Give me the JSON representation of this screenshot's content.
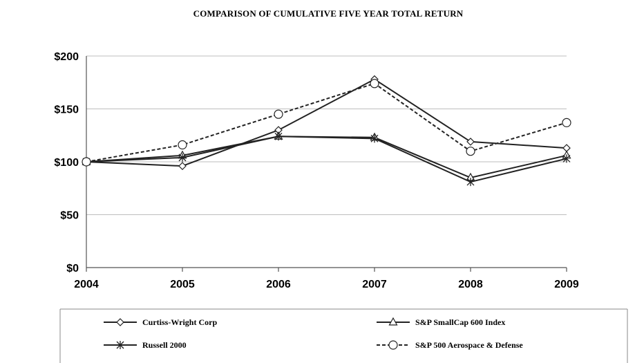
{
  "chart_data": {
    "type": "line",
    "title": "COMPARISON OF CUMULATIVE FIVE YEAR TOTAL RETURN",
    "xlabel": "",
    "ylabel": "",
    "x": [
      "2004",
      "2005",
      "2006",
      "2007",
      "2008",
      "2009"
    ],
    "ylim": [
      0,
      200
    ],
    "y_ticks": [
      "$0",
      "$50",
      "$100",
      "$150",
      "$200"
    ],
    "grid": true,
    "legend_position": "bottom",
    "series": [
      {
        "name": "Curtiss-Wright Corp",
        "values": [
          100,
          96,
          130,
          178,
          119,
          113
        ],
        "marker": "diamond",
        "dashed": false,
        "color": "#222222"
      },
      {
        "name": "S&P SmallCap 600 Index",
        "values": [
          100,
          106,
          124,
          123,
          85,
          106
        ],
        "marker": "triangle",
        "dashed": false,
        "color": "#222222"
      },
      {
        "name": "Russell 2000",
        "values": [
          100,
          104,
          124,
          122,
          81,
          103
        ],
        "marker": "star",
        "dashed": false,
        "color": "#222222"
      },
      {
        "name": "S&P 500 Aerospace & Defense",
        "values": [
          100,
          116,
          145,
          174,
          110,
          137
        ],
        "marker": "circle",
        "dashed": true,
        "color": "#222222"
      }
    ]
  }
}
